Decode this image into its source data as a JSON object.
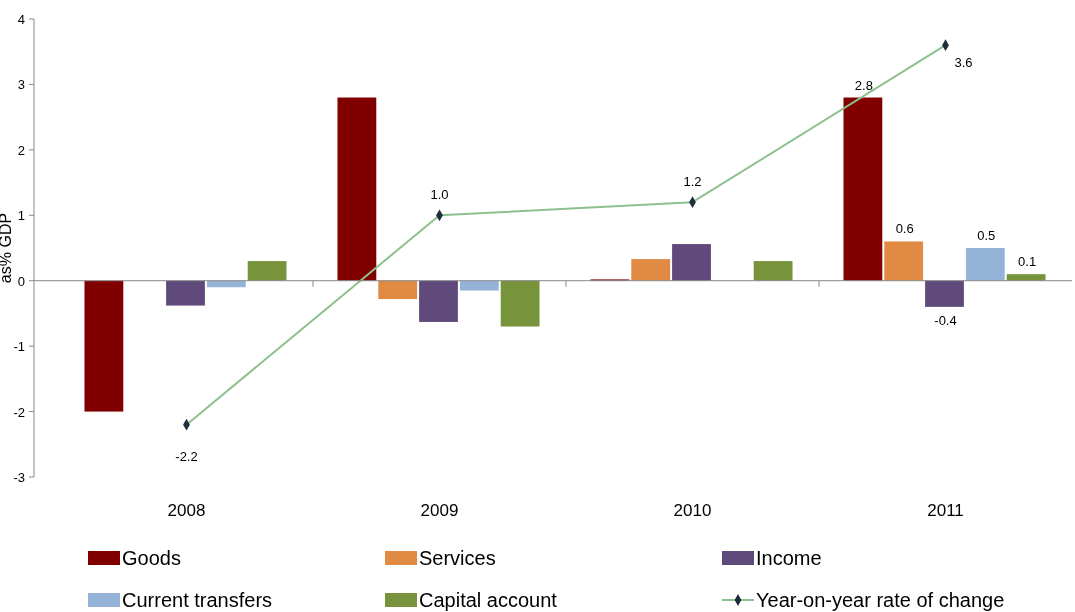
{
  "chart_data": {
    "type": "bar",
    "ylabel": "as% GDP",
    "categories": [
      "2008",
      "2009",
      "2010",
      "2011"
    ],
    "ylim": [
      -3,
      4
    ],
    "yticks": [
      -3,
      -2,
      -1,
      0,
      1,
      2,
      3,
      4
    ],
    "legend": "bottom",
    "series": [
      {
        "name": "Goods",
        "color": "#800000",
        "values": [
          -2.0,
          2.8,
          0.02,
          2.8
        ],
        "value_labels": [
          null,
          null,
          null,
          "2.8"
        ]
      },
      {
        "name": "Services",
        "color": "#e08a44",
        "values": [
          0,
          -0.28,
          0.33,
          0.6
        ],
        "value_labels": [
          null,
          null,
          null,
          "0.6"
        ]
      },
      {
        "name": "Income",
        "color": "#604a7b",
        "values": [
          -0.38,
          -0.63,
          0.56,
          -0.4
        ],
        "value_labels": [
          null,
          null,
          null,
          "-0.4"
        ]
      },
      {
        "name": "Current transfers",
        "color": "#95b3d7",
        "values": [
          -0.1,
          -0.15,
          0,
          0.5
        ],
        "value_labels": [
          null,
          null,
          null,
          "0.5"
        ]
      },
      {
        "name": "Capital account",
        "color": "#77933c",
        "values": [
          0.3,
          -0.7,
          0.3,
          0.1
        ],
        "value_labels": [
          null,
          null,
          null,
          "0.1"
        ]
      },
      {
        "name": "Year-on-year rate of change",
        "type": "line",
        "color": "#8cc08c",
        "marker": "diamond",
        "values": [
          -2.2,
          1.0,
          1.2,
          3.6
        ],
        "value_labels": [
          "-2.2",
          "1.0",
          "1.2",
          "3.6"
        ]
      }
    ]
  }
}
